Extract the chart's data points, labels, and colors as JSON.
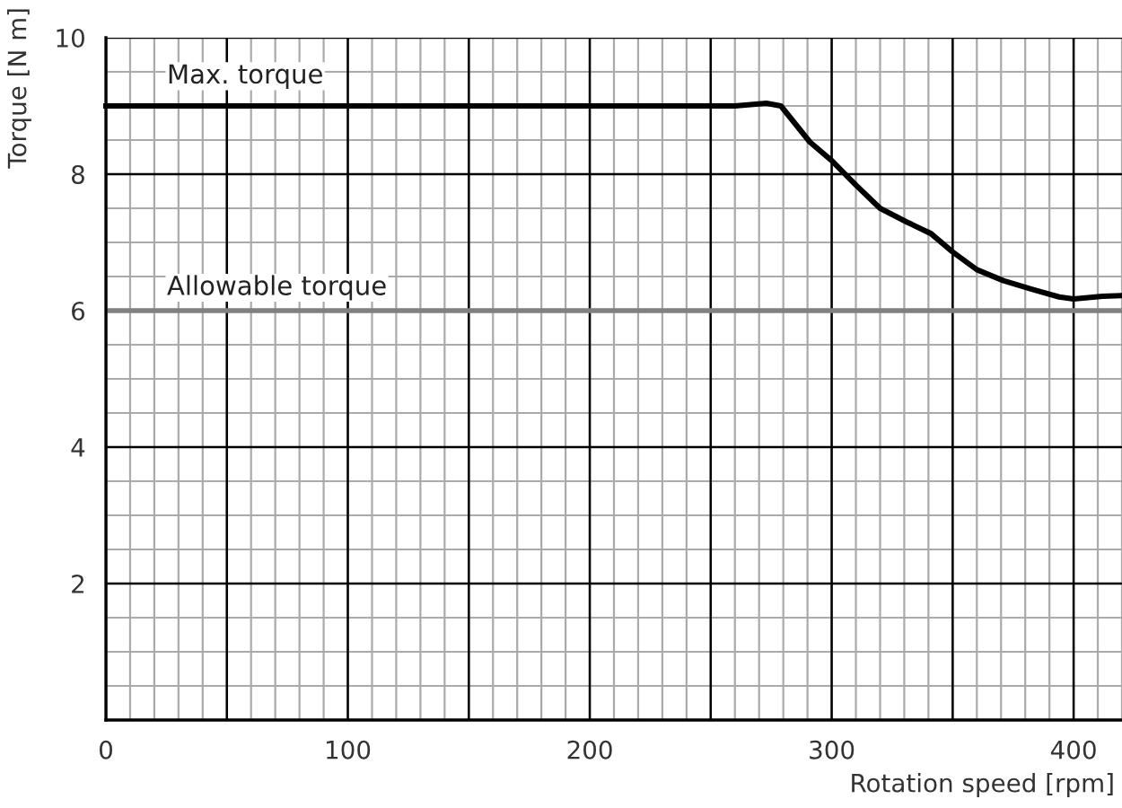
{
  "chart_data": {
    "type": "line",
    "xlabel": "Rotation speed [rpm]",
    "ylabel": "Torque [N m]",
    "series": [
      {
        "name": "Max. torque",
        "color": "#000000",
        "x": [
          0,
          260,
          273,
          279,
          291,
          300,
          310,
          320,
          331,
          341,
          350,
          360,
          371,
          383,
          394,
          400,
          412,
          420
        ],
        "values": [
          9,
          9,
          9.04,
          9,
          8.47,
          8.2,
          7.84,
          7.5,
          7.3,
          7.13,
          6.86,
          6.6,
          6.44,
          6.31,
          6.2,
          6.17,
          6.21,
          6.22
        ]
      }
    ],
    "ref_lines": [
      {
        "axis": "y",
        "value": 6,
        "label": "Allowable torque",
        "color": "#808080",
        "line_style": "solid"
      }
    ],
    "xlim": [
      0,
      420
    ],
    "ylim": [
      0,
      10
    ],
    "xticks": [
      0,
      {
        "value": 50,
        "label": null
      },
      100,
      {
        "value": 150,
        "label": null
      },
      200,
      {
        "value": 250,
        "label": null
      },
      300,
      {
        "value": 350,
        "label": null
      },
      400
    ],
    "yticks": [
      2,
      4,
      6,
      8,
      10
    ],
    "grid": true,
    "marker": "none",
    "line_style": "solid"
  }
}
